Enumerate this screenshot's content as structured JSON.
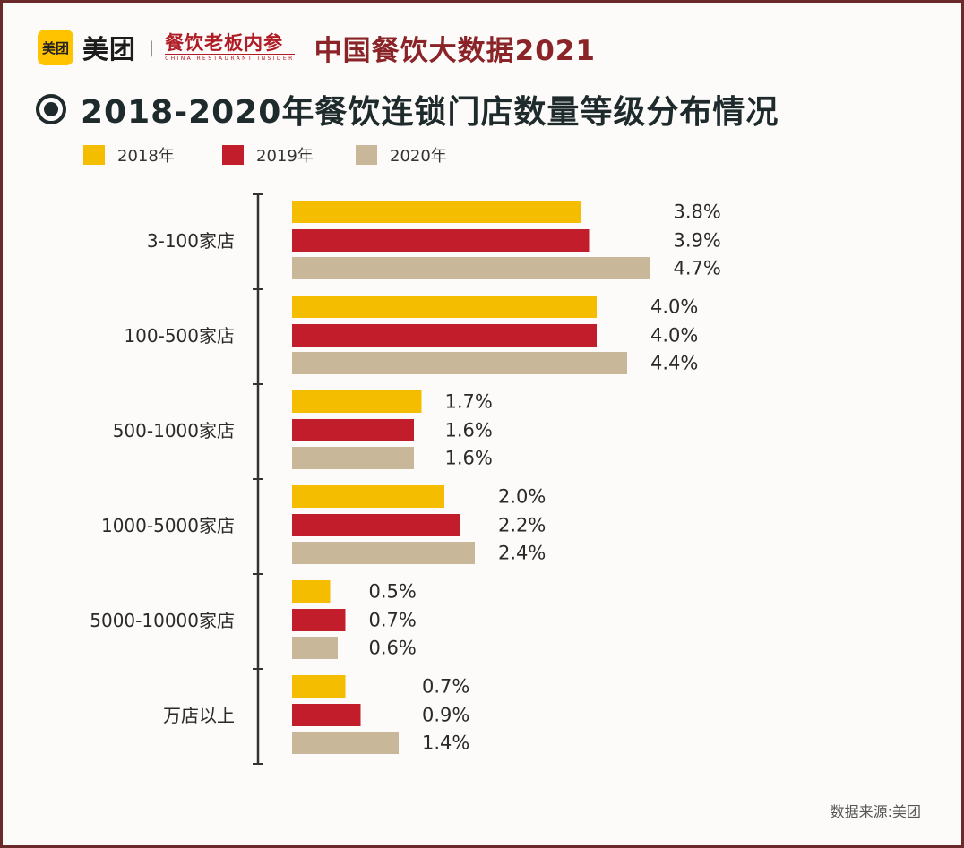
{
  "header": {
    "logo_text": "美团",
    "brand_name": "美团",
    "separator": "|",
    "partner_name": "餐饮老板内参",
    "partner_subtitle": "CHINA RESTAURANT INSIDER",
    "report_title": "中国餐饮大数据2021"
  },
  "title": "2018-2020年餐饮连锁门店数量等级分布情况",
  "source": "数据来源:美团",
  "colors": {
    "s2018": "#f5bd00",
    "s2019": "#c21d2b",
    "s2020": "#c8b899",
    "axis": "#333333",
    "text": "#2a2a2a"
  },
  "legend": [
    {
      "label": "2018年",
      "color": "#f5bd00"
    },
    {
      "label": "2019年",
      "color": "#c21d2b"
    },
    {
      "label": "2020年",
      "color": "#c8b899"
    }
  ],
  "chart_data": {
    "type": "bar",
    "orientation": "horizontal",
    "title": "2018-2020年餐饮连锁门店数量等级分布情况",
    "categories": [
      "3-100家店",
      "100-500家店",
      "500-1000家店",
      "1000-5000家店",
      "5000-10000家店",
      "万店以上"
    ],
    "series": [
      {
        "name": "2018年",
        "values": [
          3.8,
          4.0,
          1.7,
          2.0,
          0.5,
          0.7
        ],
        "labels": [
          "3.8%",
          "4.0%",
          "1.7%",
          "2.0%",
          "0.5%",
          "0.7%"
        ]
      },
      {
        "name": "2019年",
        "values": [
          3.9,
          4.0,
          1.6,
          2.2,
          0.7,
          0.9
        ],
        "labels": [
          "3.9%",
          "4.0%",
          "1.6%",
          "2.2%",
          "0.7%",
          "0.9%"
        ]
      },
      {
        "name": "2020年",
        "values": [
          4.7,
          4.4,
          1.6,
          2.4,
          0.6,
          1.4
        ],
        "labels": [
          "4.7%",
          "4.4%",
          "1.6%",
          "2.4%",
          "0.6%",
          "1.4%"
        ]
      }
    ],
    "unit": "%",
    "xlabel": "",
    "ylabel": "",
    "grid": false,
    "legend_position": "top-left"
  }
}
